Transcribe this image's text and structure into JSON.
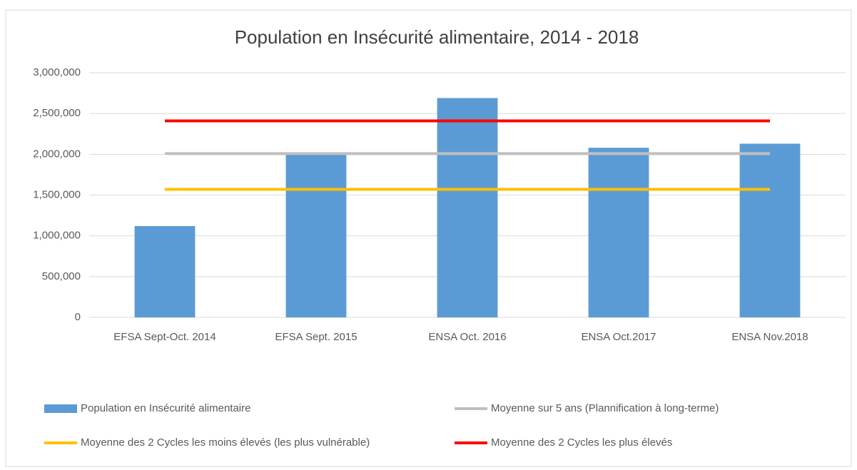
{
  "chart_data": {
    "type": "bar",
    "title": "Population en Insécurité alimentaire, 2014 - 2018",
    "categories": [
      "EFSA Sept-Oct. 2014",
      "EFSA Sept. 2015",
      "ENSA Oct. 2016",
      "ENSA Oct.2017",
      "ENSA Nov.2018"
    ],
    "series": [
      {
        "name": "Population en Insécurité alimentaire",
        "type": "bar",
        "color": "#5b9bd5",
        "values": [
          1120000,
          2020000,
          2690000,
          2080000,
          2130000
        ]
      },
      {
        "name": "Moyenne sur 5 ans (Plannification à long-terme)",
        "type": "line",
        "color": "#bfbfbf",
        "values": [
          2008000,
          2008000,
          2008000,
          2008000,
          2008000
        ]
      },
      {
        "name": "Moyenne des 2 Cycles les moins élevés (les plus vulnérable)",
        "type": "line",
        "color": "#ffc000",
        "values": [
          1570000,
          1570000,
          1570000,
          1570000,
          1570000
        ]
      },
      {
        "name": "Moyenne des 2 Cycles les plus élevés",
        "type": "line",
        "color": "#ff0000",
        "values": [
          2410000,
          2410000,
          2410000,
          2410000,
          2410000
        ]
      }
    ],
    "ylim": [
      0,
      3000000
    ],
    "yticks": [
      0,
      {
        "value": 500000,
        "label": "500,000"
      },
      {
        "value": 1000000,
        "label": "1,000,000"
      },
      {
        "value": 1500000,
        "label": "1,500,000"
      },
      {
        "value": 2000000,
        "label": "2,000,000"
      },
      {
        "value": 2500000,
        "label": "2,500,000"
      },
      {
        "value": 3000000,
        "label": "3,000,000"
      }
    ],
    "grid": true
  }
}
